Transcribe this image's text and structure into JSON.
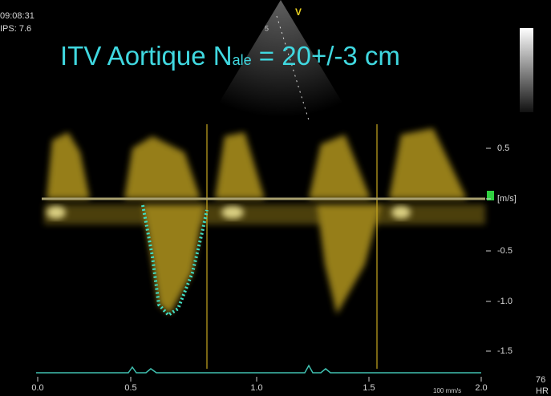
{
  "header": {
    "time": "09:08:31",
    "ips": "IPS: 7.6",
    "sector_mark": "V",
    "sector_depth": "5"
  },
  "title": {
    "main": "ITV Aortique N",
    "subscript": "ale",
    "rest": " = 20+/-3 cm"
  },
  "velocity_scale": {
    "labels": [
      "0.5",
      "[m/s]",
      "-0.5",
      "-1.0",
      "-1.5"
    ]
  },
  "time_scale": {
    "labels": [
      "0.0",
      "0.5",
      "1.0",
      "1.5",
      "2.0"
    ],
    "sweep": "100 mm/s"
  },
  "heart_rate": {
    "value": "76",
    "unit": "HR"
  }
}
